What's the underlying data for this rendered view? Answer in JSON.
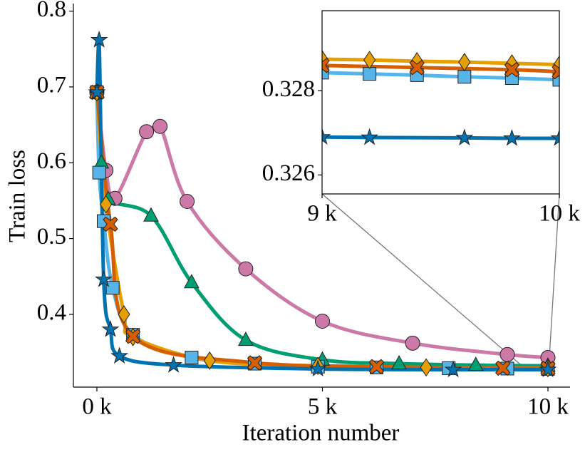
{
  "chart_data": [
    {
      "type": "line",
      "xlabel": "Iteration number",
      "ylabel": "Train loss",
      "xlim": [
        -521,
        10490
      ],
      "ylim": [
        0.304,
        0.81
      ],
      "xticks": [
        {
          "value": 0,
          "label": "0 k"
        },
        {
          "value": 5000,
          "label": "5 k"
        },
        {
          "value": 10000,
          "label": "10 k"
        }
      ],
      "yticks": [
        0.4,
        0.5,
        0.6,
        0.7,
        0.8
      ],
      "series": [
        {
          "color": "#cc79a7",
          "marker": "circle",
          "x": [
            0,
            200,
            400,
            1100,
            1400,
            2000,
            3300,
            5000,
            7000,
            9100,
            10000
          ],
          "values": [
            0.693,
            0.59,
            0.553,
            0.641,
            0.648,
            0.549,
            0.46,
            0.391,
            0.362,
            0.347,
            0.343
          ]
        },
        {
          "color": "#009e73",
          "marker": "triangle",
          "x": [
            0,
            100,
            250,
            1200,
            2100,
            3300,
            5000,
            6700,
            8400,
            10000
          ],
          "values": [
            0.693,
            0.6,
            0.552,
            0.53,
            0.442,
            0.366,
            0.34,
            0.335,
            0.333,
            0.332
          ]
        },
        {
          "color": "#56b4e9",
          "marker": "square",
          "x": [
            0,
            50,
            150,
            350,
            800,
            2100,
            3500,
            4900,
            6200,
            7800,
            9100,
            10000
          ],
          "values": [
            0.693,
            0.587,
            0.523,
            0.435,
            0.373,
            0.343,
            0.335,
            0.331,
            0.33,
            0.329,
            0.3285,
            0.328
          ]
        },
        {
          "color": "#e69f00",
          "marker": "diamond",
          "x": [
            0,
            200,
            600,
            800,
            2500,
            4900,
            7300,
            10000
          ],
          "values": [
            0.693,
            0.545,
            0.4,
            0.37,
            0.339,
            0.332,
            0.33,
            0.329
          ]
        },
        {
          "color": "#d55e00",
          "marker": "x",
          "x": [
            0,
            300,
            800,
            3500,
            6200,
            9000,
            10000
          ],
          "values": [
            0.693,
            0.519,
            0.371,
            0.336,
            0.331,
            0.329,
            0.3285
          ]
        },
        {
          "color": "#0072b2",
          "marker": "star",
          "x": [
            0,
            50,
            150,
            300,
            500,
            1700,
            4900,
            7900,
            10000
          ],
          "values": [
            0.693,
            0.762,
            0.446,
            0.38,
            0.345,
            0.333,
            0.328,
            0.327,
            0.327
          ]
        }
      ]
    },
    {
      "type": "line",
      "xlim": [
        9000,
        10000
      ],
      "ylim": [
        0.32555,
        0.3299
      ],
      "xticks": [
        {
          "value": 9000,
          "label": "9 k"
        },
        {
          "value": 10000,
          "label": "10 k"
        }
      ],
      "yticks": [
        0.326,
        0.328
      ],
      "series": [
        {
          "color": "#56b4e9",
          "marker": "square",
          "x": [
            9000,
            9200,
            9400,
            9600,
            9800,
            10000
          ],
          "values": [
            0.32843,
            0.3284,
            0.32837,
            0.32833,
            0.3283,
            0.32826
          ]
        },
        {
          "color": "#e69f00",
          "marker": "diamond",
          "x": [
            9000,
            9200,
            9400,
            9600,
            9800,
            10000
          ],
          "values": [
            0.32875,
            0.32873,
            0.3287,
            0.32868,
            0.32865,
            0.32862
          ]
        },
        {
          "color": "#d55e00",
          "marker": "x",
          "x": [
            9000,
            9400,
            9800,
            10000
          ],
          "values": [
            0.3286,
            0.32855,
            0.3285,
            0.32845
          ]
        },
        {
          "color": "#0072b2",
          "marker": "star",
          "x": [
            9000,
            9200,
            9600,
            9800,
            10000
          ],
          "values": [
            0.3269,
            0.32689,
            0.32688,
            0.32687,
            0.32687
          ]
        }
      ]
    }
  ]
}
